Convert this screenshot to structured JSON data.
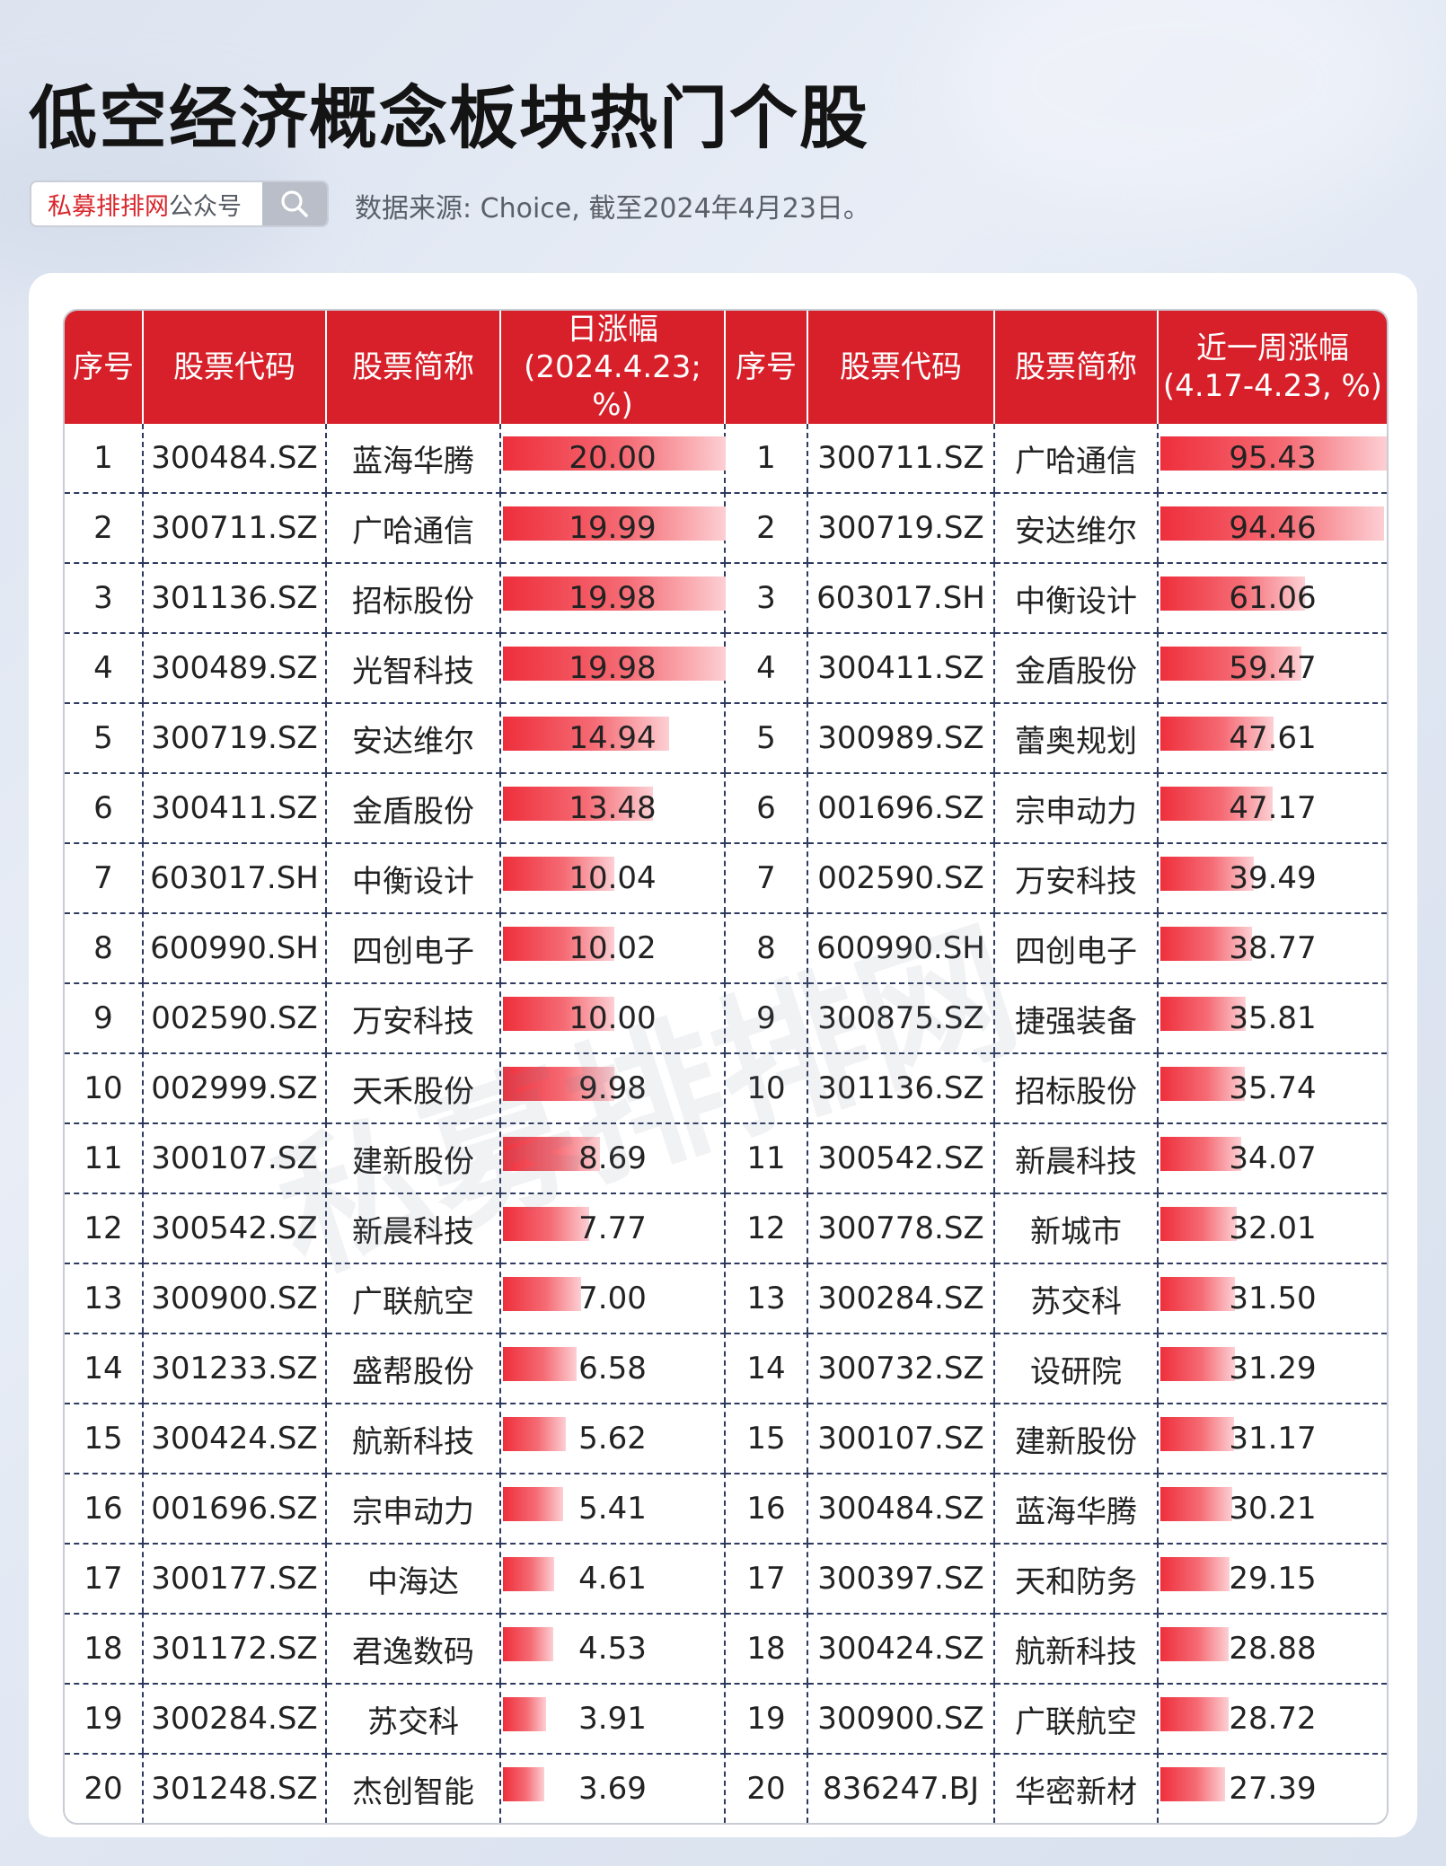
{
  "title": "低空经济概念板块热门个股",
  "search": {
    "brand": "私募排排网",
    "suffix": "公众号",
    "icon": "search-icon"
  },
  "source": "数据来源: Choice, 截至2024年4月23日。",
  "watermark": "私募排排网",
  "colors": {
    "header_bg": "#d7202a",
    "bar_start": "#ee2f3c",
    "bar_end": "#fccfd3",
    "brand": "#d9262b"
  },
  "table": {
    "headers": {
      "seq": "序号",
      "code": "股票代码",
      "name": "股票简称",
      "daily_line1": "日涨幅",
      "daily_line2": "(2024.4.23; %)",
      "weekly_line1": "近一周涨幅",
      "weekly_line2": "(4.17-4.23, %)"
    },
    "daily_max": 20.0,
    "weekly_max": 95.43,
    "rows": [
      {
        "seq": "1",
        "code": "300484.SZ",
        "name": "蓝海华腾",
        "daily": "20.00",
        "seq2": "1",
        "code2": "300711.SZ",
        "name2": "广哈通信",
        "weekly": "95.43"
      },
      {
        "seq": "2",
        "code": "300711.SZ",
        "name": "广哈通信",
        "daily": "19.99",
        "seq2": "2",
        "code2": "300719.SZ",
        "name2": "安达维尔",
        "weekly": "94.46"
      },
      {
        "seq": "3",
        "code": "301136.SZ",
        "name": "招标股份",
        "daily": "19.98",
        "seq2": "3",
        "code2": "603017.SH",
        "name2": "中衡设计",
        "weekly": "61.06"
      },
      {
        "seq": "4",
        "code": "300489.SZ",
        "name": "光智科技",
        "daily": "19.98",
        "seq2": "4",
        "code2": "300411.SZ",
        "name2": "金盾股份",
        "weekly": "59.47"
      },
      {
        "seq": "5",
        "code": "300719.SZ",
        "name": "安达维尔",
        "daily": "14.94",
        "seq2": "5",
        "code2": "300989.SZ",
        "name2": "蕾奥规划",
        "weekly": "47.61"
      },
      {
        "seq": "6",
        "code": "300411.SZ",
        "name": "金盾股份",
        "daily": "13.48",
        "seq2": "6",
        "code2": "001696.SZ",
        "name2": "宗申动力",
        "weekly": "47.17"
      },
      {
        "seq": "7",
        "code": "603017.SH",
        "name": "中衡设计",
        "daily": "10.04",
        "seq2": "7",
        "code2": "002590.SZ",
        "name2": "万安科技",
        "weekly": "39.49"
      },
      {
        "seq": "8",
        "code": "600990.SH",
        "name": "四创电子",
        "daily": "10.02",
        "seq2": "8",
        "code2": "600990.SH",
        "name2": "四创电子",
        "weekly": "38.77"
      },
      {
        "seq": "9",
        "code": "002590.SZ",
        "name": "万安科技",
        "daily": "10.00",
        "seq2": "9",
        "code2": "300875.SZ",
        "name2": "捷强装备",
        "weekly": "35.81"
      },
      {
        "seq": "10",
        "code": "002999.SZ",
        "name": "天禾股份",
        "daily": "9.98",
        "seq2": "10",
        "code2": "301136.SZ",
        "name2": "招标股份",
        "weekly": "35.74"
      },
      {
        "seq": "11",
        "code": "300107.SZ",
        "name": "建新股份",
        "daily": "8.69",
        "seq2": "11",
        "code2": "300542.SZ",
        "name2": "新晨科技",
        "weekly": "34.07"
      },
      {
        "seq": "12",
        "code": "300542.SZ",
        "name": "新晨科技",
        "daily": "7.77",
        "seq2": "12",
        "code2": "300778.SZ",
        "name2": "新城市",
        "weekly": "32.01"
      },
      {
        "seq": "13",
        "code": "300900.SZ",
        "name": "广联航空",
        "daily": "7.00",
        "seq2": "13",
        "code2": "300284.SZ",
        "name2": "苏交科",
        "weekly": "31.50"
      },
      {
        "seq": "14",
        "code": "301233.SZ",
        "name": "盛帮股份",
        "daily": "6.58",
        "seq2": "14",
        "code2": "300732.SZ",
        "name2": "设研院",
        "weekly": "31.29"
      },
      {
        "seq": "15",
        "code": "300424.SZ",
        "name": "航新科技",
        "daily": "5.62",
        "seq2": "15",
        "code2": "300107.SZ",
        "name2": "建新股份",
        "weekly": "31.17"
      },
      {
        "seq": "16",
        "code": "001696.SZ",
        "name": "宗申动力",
        "daily": "5.41",
        "seq2": "16",
        "code2": "300484.SZ",
        "name2": "蓝海华腾",
        "weekly": "30.21"
      },
      {
        "seq": "17",
        "code": "300177.SZ",
        "name": "中海达",
        "daily": "4.61",
        "seq2": "17",
        "code2": "300397.SZ",
        "name2": "天和防务",
        "weekly": "29.15"
      },
      {
        "seq": "18",
        "code": "301172.SZ",
        "name": "君逸数码",
        "daily": "4.53",
        "seq2": "18",
        "code2": "300424.SZ",
        "name2": "航新科技",
        "weekly": "28.88"
      },
      {
        "seq": "19",
        "code": "300284.SZ",
        "name": "苏交科",
        "daily": "3.91",
        "seq2": "19",
        "code2": "300900.SZ",
        "name2": "广联航空",
        "weekly": "28.72"
      },
      {
        "seq": "20",
        "code": "301248.SZ",
        "name": "杰创智能",
        "daily": "3.69",
        "seq2": "20",
        "code2": "836247.BJ",
        "name2": "华密新材",
        "weekly": "27.39"
      }
    ]
  }
}
